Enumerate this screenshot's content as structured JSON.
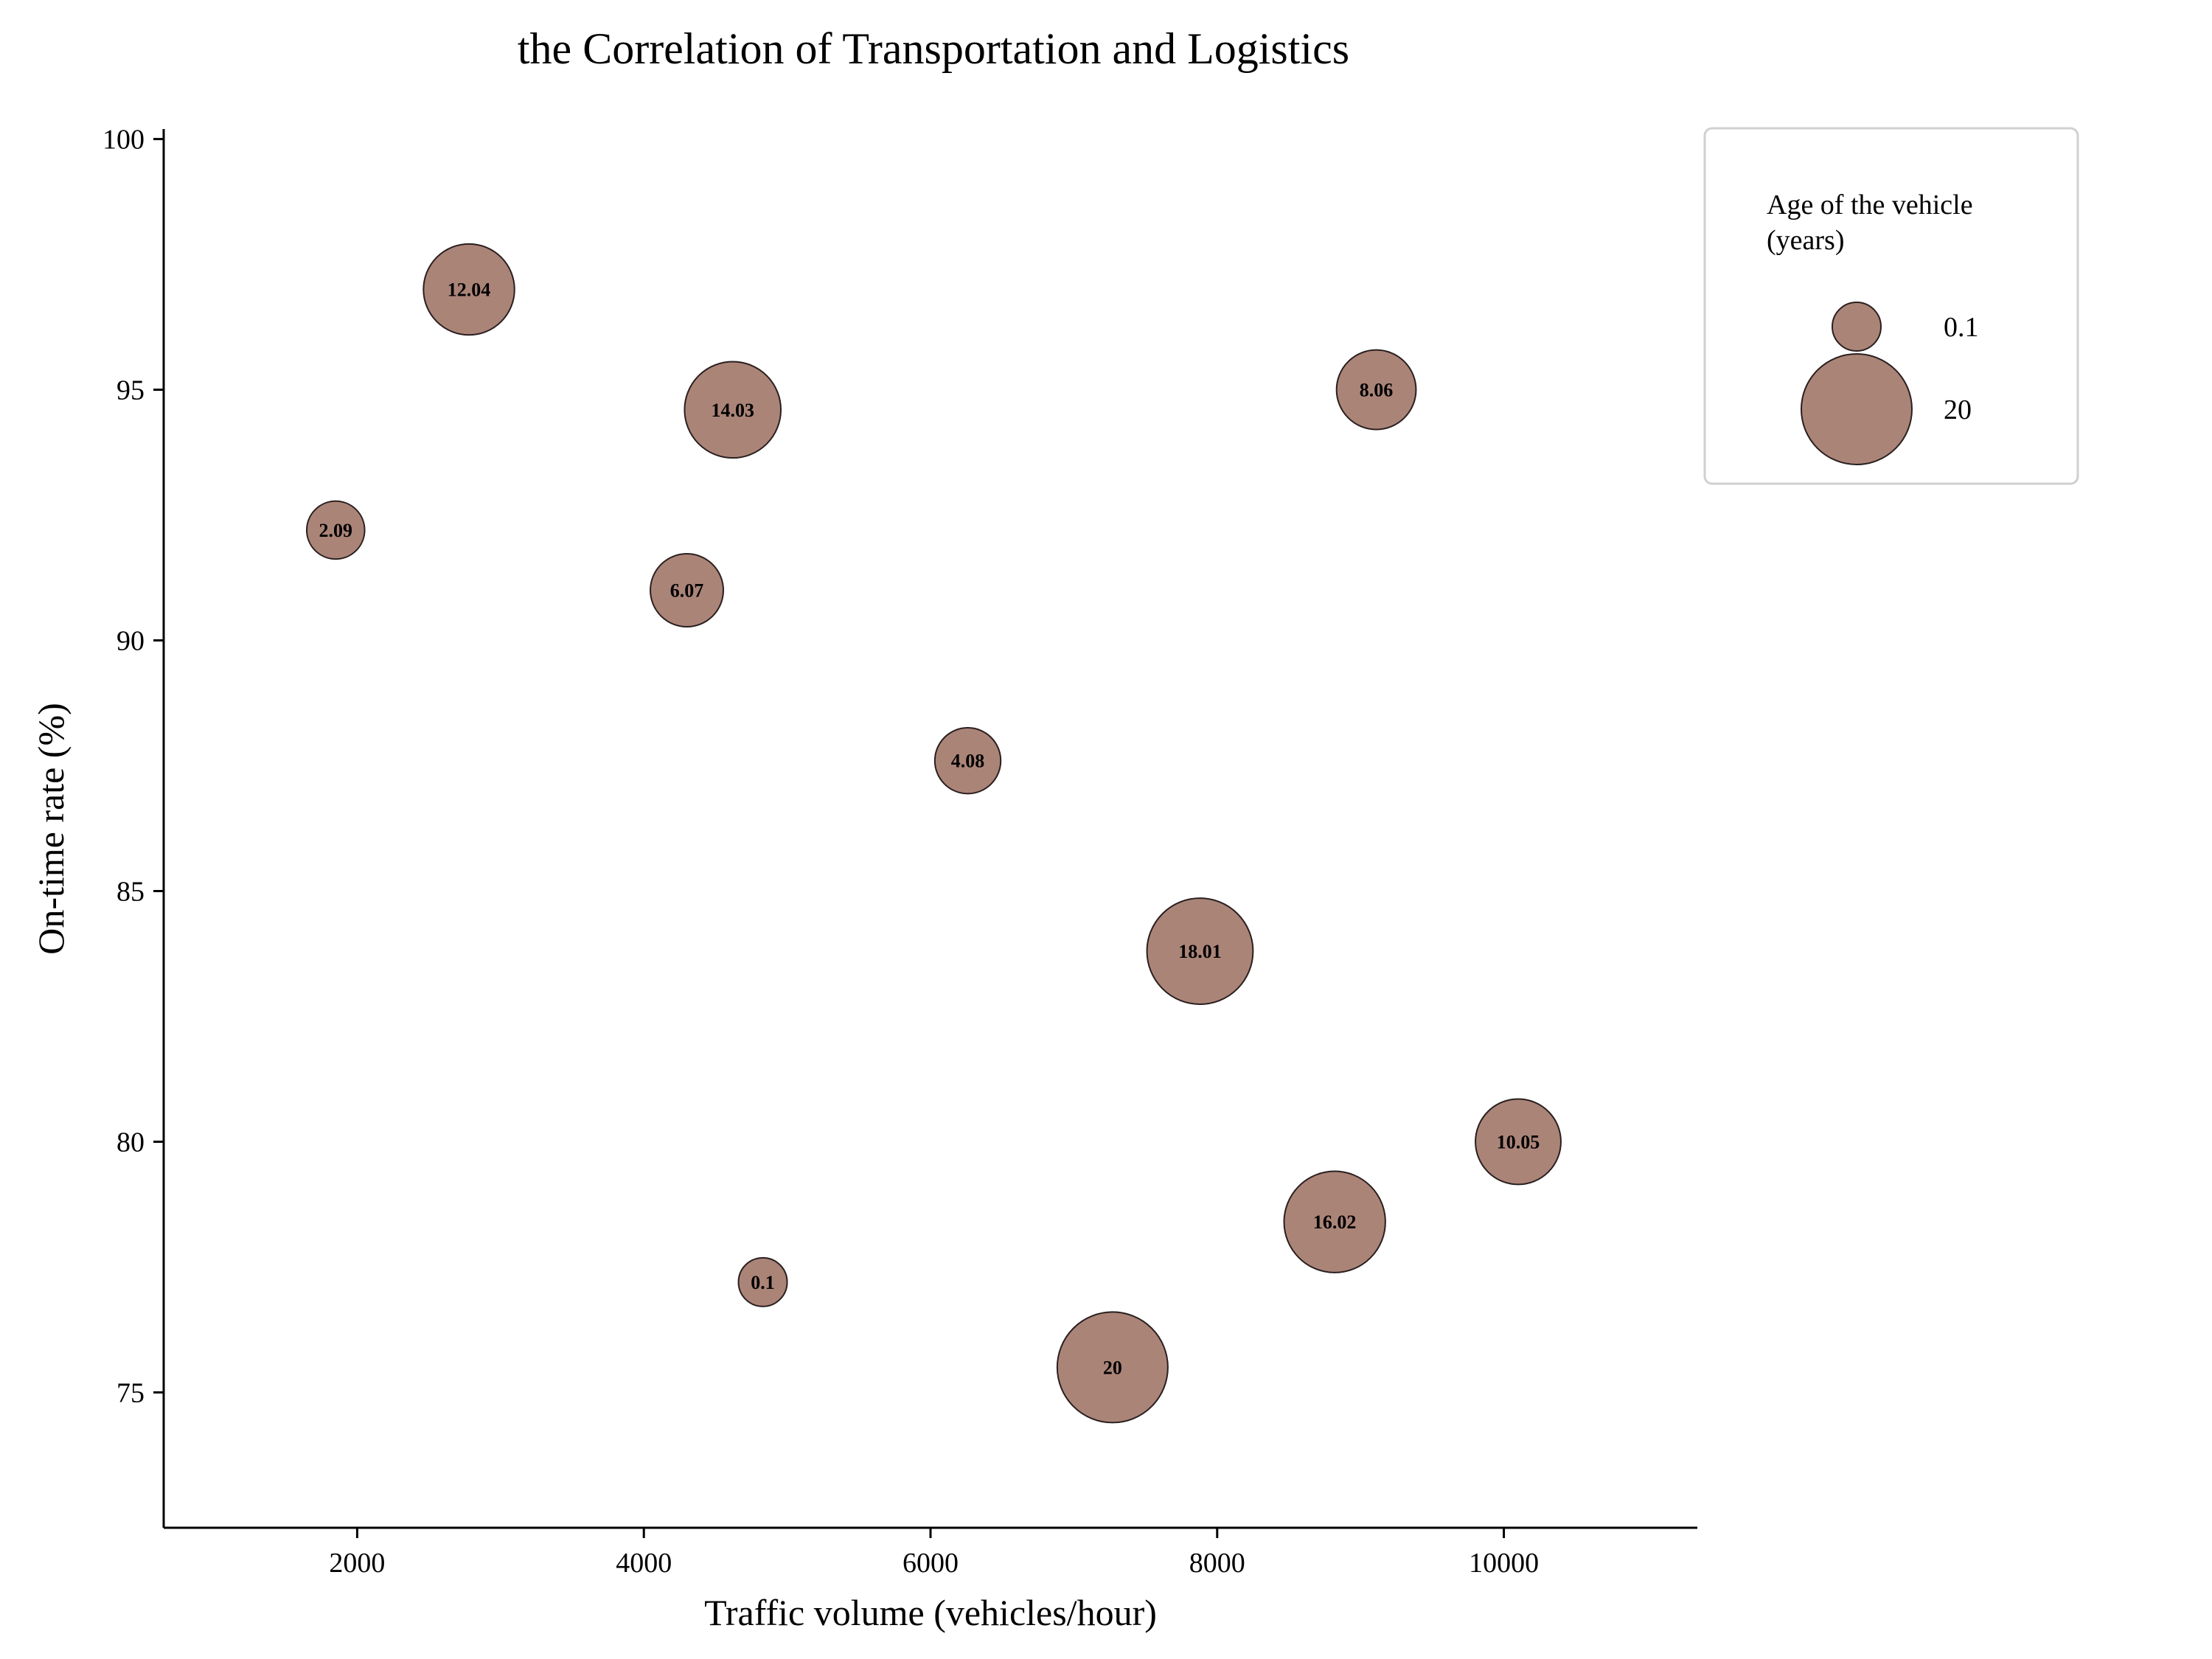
{
  "chart_data": {
    "type": "scatter",
    "title": "the Correlation of Transportation and Logistics",
    "xlabel": "Traffic volume (vehicles/hour)",
    "ylabel": "On-time rate (%)",
    "xlim": [
      650,
      11350
    ],
    "ylim": [
      72.3,
      100.2
    ],
    "xticks": [
      2000,
      4000,
      6000,
      8000,
      10000
    ],
    "yticks": [
      75,
      80,
      85,
      90,
      95,
      100
    ],
    "size_label": "Age of the vehicle (years)",
    "points": [
      {
        "x": 1850,
        "y": 92.2,
        "size": 2.09,
        "label": "2.09"
      },
      {
        "x": 2780,
        "y": 97.0,
        "size": 12.04,
        "label": "12.04"
      },
      {
        "x": 4300,
        "y": 91.0,
        "size": 6.07,
        "label": "6.07"
      },
      {
        "x": 4620,
        "y": 94.6,
        "size": 14.03,
        "label": "14.03"
      },
      {
        "x": 4830,
        "y": 77.2,
        "size": 0.1,
        "label": "0.1"
      },
      {
        "x": 6260,
        "y": 87.6,
        "size": 4.08,
        "label": "4.08"
      },
      {
        "x": 7270,
        "y": 75.5,
        "size": 20,
        "label": "20"
      },
      {
        "x": 7880,
        "y": 83.8,
        "size": 18.01,
        "label": "18.01"
      },
      {
        "x": 8820,
        "y": 78.4,
        "size": 16.02,
        "label": "16.02"
      },
      {
        "x": 9110,
        "y": 95.0,
        "size": 8.06,
        "label": "8.06"
      },
      {
        "x": 10100,
        "y": 80.0,
        "size": 10.05,
        "label": "10.05"
      }
    ],
    "legend": {
      "title_lines": [
        "Age of the vehicle",
        "(years)"
      ],
      "placement": "top-right outside",
      "entries": [
        {
          "size": 0.1,
          "label": "0.1"
        },
        {
          "size": 20,
          "label": "20"
        }
      ]
    },
    "colors": {
      "bubble": "#ab8478",
      "edge": "#2a1f1f"
    },
    "grid": false
  }
}
